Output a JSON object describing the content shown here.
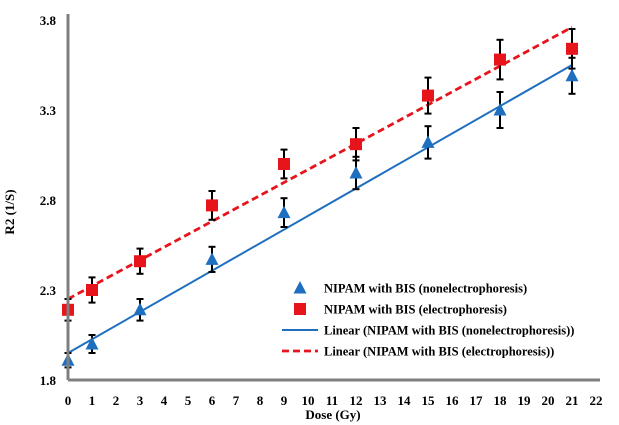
{
  "chart_data": {
    "type": "scatter",
    "title": "",
    "xlabel": "Dose (Gy)",
    "ylabel": "R2 (1/S)",
    "xlim": [
      0,
      22
    ],
    "ylim": [
      1.8,
      3.8
    ],
    "x_ticks": [
      0,
      1,
      2,
      3,
      4,
      5,
      6,
      7,
      8,
      9,
      10,
      11,
      12,
      13,
      14,
      15,
      16,
      17,
      18,
      19,
      20,
      21,
      22
    ],
    "y_ticks": [
      "1.8",
      "2.3",
      "2.8",
      "3.3",
      "3.8"
    ],
    "grid": false,
    "legend_position": "lower-right",
    "series": [
      {
        "name": "NIPAM with BIS (nonelectrophoresis)",
        "marker": "triangle",
        "color": "#1f6fc0",
        "x": [
          0,
          1,
          3,
          6,
          9,
          12,
          15,
          18,
          21
        ],
        "y": [
          1.91,
          2.0,
          2.19,
          2.47,
          2.73,
          2.95,
          3.12,
          3.3,
          3.49
        ],
        "error": [
          0.04,
          0.05,
          0.06,
          0.07,
          0.08,
          0.09,
          0.09,
          0.1,
          0.1
        ]
      },
      {
        "name": "NIPAM with BIS (electrophoresis)",
        "marker": "square",
        "color": "#e8141c",
        "x": [
          0,
          1,
          3,
          6,
          9,
          12,
          15,
          18,
          21
        ],
        "y": [
          2.19,
          2.3,
          2.46,
          2.77,
          3.0,
          3.11,
          3.38,
          3.58,
          3.64
        ],
        "error": [
          0.06,
          0.07,
          0.07,
          0.08,
          0.08,
          0.09,
          0.1,
          0.11,
          0.11
        ]
      }
    ],
    "trendlines": [
      {
        "name": "Linear (NIPAM with BIS (nonelectrophoresis))",
        "style": "solid",
        "color": "#1f6fc0",
        "x": [
          0,
          21
        ],
        "y": [
          1.95,
          3.55
        ]
      },
      {
        "name": "Linear (NIPAM with BIS (electrophoresis))",
        "style": "dashed",
        "color": "#e8141c",
        "x": [
          0,
          21
        ],
        "y": [
          2.25,
          3.76
        ]
      }
    ]
  }
}
